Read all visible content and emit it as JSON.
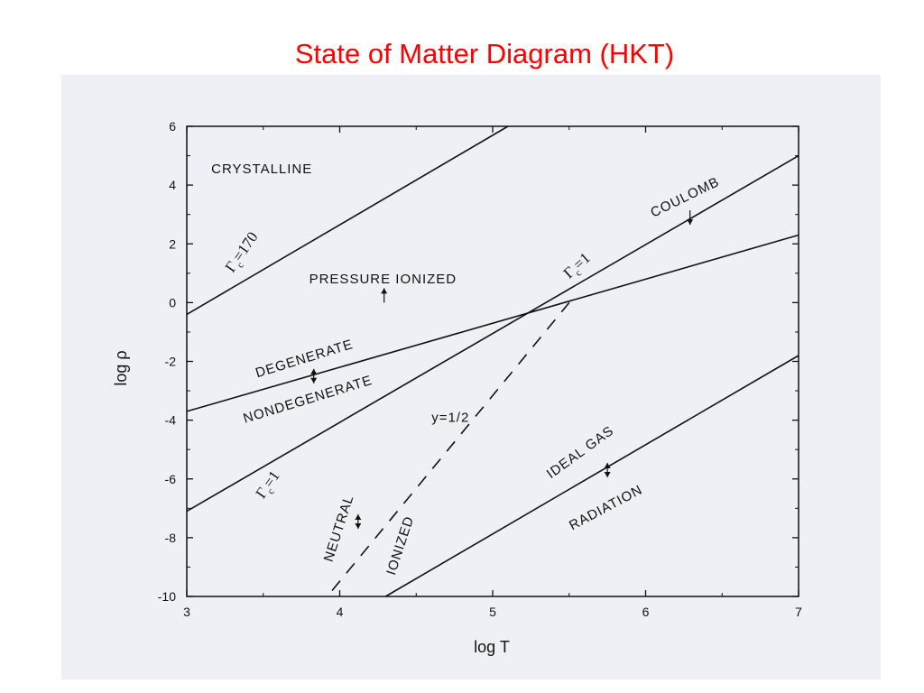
{
  "slide": {
    "title": "State of Matter Diagram (HKT)"
  },
  "chart_data": {
    "type": "line",
    "xlabel": "log T",
    "ylabel": "log ρ",
    "xlim": [
      3,
      7
    ],
    "ylim": [
      -10,
      6
    ],
    "xticks": [
      3,
      4,
      5,
      6,
      7
    ],
    "yticks": [
      -10,
      -8,
      -6,
      -4,
      -2,
      0,
      2,
      4,
      6
    ],
    "grid": false,
    "series": [
      {
        "name": "Γc=170",
        "style": "solid",
        "x": [
          3,
          5.1
        ],
        "y": [
          -0.4,
          6
        ]
      },
      {
        "name": "Γc=1",
        "style": "solid",
        "x": [
          3,
          7
        ],
        "y": [
          -7.1,
          5
        ]
      },
      {
        "name": "",
        "style": "solid",
        "x": [
          3,
          7
        ],
        "y": [
          -3.7,
          2.3
        ]
      },
      {
        "name": "y=1/2",
        "style": "dashed",
        "x": [
          3.95,
          5.5
        ],
        "y": [
          -9.8,
          0
        ]
      },
      {
        "name": "",
        "style": "solid",
        "x": [
          4.3,
          7
        ],
        "y": [
          -10,
          -1.8
        ]
      }
    ],
    "annotations": [
      {
        "id": "crystalline",
        "text": "CRYSTALLINE",
        "x": 3.16,
        "y": 4.4,
        "angle": 0
      },
      {
        "id": "gamma170",
        "text": "Γc=170",
        "x": 3.3,
        "y": 1,
        "angle": -55
      },
      {
        "id": "pressure",
        "text": "PRESSURE IONIZED",
        "x": 3.8,
        "y": 0.65,
        "angle": 0
      },
      {
        "id": "coulomb",
        "text": "COULOMB",
        "x": 6.05,
        "y": 2.9,
        "angle": -26
      },
      {
        "id": "gamma1-upper",
        "text": "Γc=1",
        "x": 5.5,
        "y": 0.8,
        "angle": -42
      },
      {
        "id": "degenerate",
        "text": "DEGENERATE",
        "x": 3.46,
        "y": -2.55,
        "angle": -17
      },
      {
        "id": "nondegenerate",
        "text": "NONDEGENERATE",
        "x": 3.38,
        "y": -4.1,
        "angle": -17
      },
      {
        "id": "y-half",
        "text": "y=1/2",
        "x": 4.6,
        "y": -4.05,
        "angle": 0
      },
      {
        "id": "gamma1-lower",
        "text": "Γc=1",
        "x": 3.5,
        "y": -6.7,
        "angle": -55
      },
      {
        "id": "neutral",
        "text": "NEUTRAL",
        "x": 3.95,
        "y": -8.85,
        "angle": -72
      },
      {
        "id": "ionized",
        "text": "IONIZED",
        "x": 4.36,
        "y": -9.3,
        "angle": -72
      },
      {
        "id": "ideal-gas",
        "text": "IDEAL GAS",
        "x": 5.38,
        "y": -6.0,
        "angle": -36
      },
      {
        "id": "radiation",
        "text": "RADIATION",
        "x": 5.52,
        "y": -7.75,
        "angle": -28
      }
    ],
    "arrows": [
      {
        "id": "arrow-pressure",
        "x": 4.29,
        "y": 0,
        "dir": "up"
      },
      {
        "id": "arrow-coulomb",
        "x": 6.29,
        "y": 2.65,
        "dir": "down"
      },
      {
        "id": "arrow-degeneracy",
        "x": 3.83,
        "y": -2.5,
        "dir": "both"
      },
      {
        "id": "arrow-ionization",
        "x": 4.12,
        "y": -7.45,
        "dir": "both"
      },
      {
        "id": "arrow-idealgas",
        "x": 5.75,
        "y": -5.7,
        "dir": "both"
      }
    ]
  }
}
